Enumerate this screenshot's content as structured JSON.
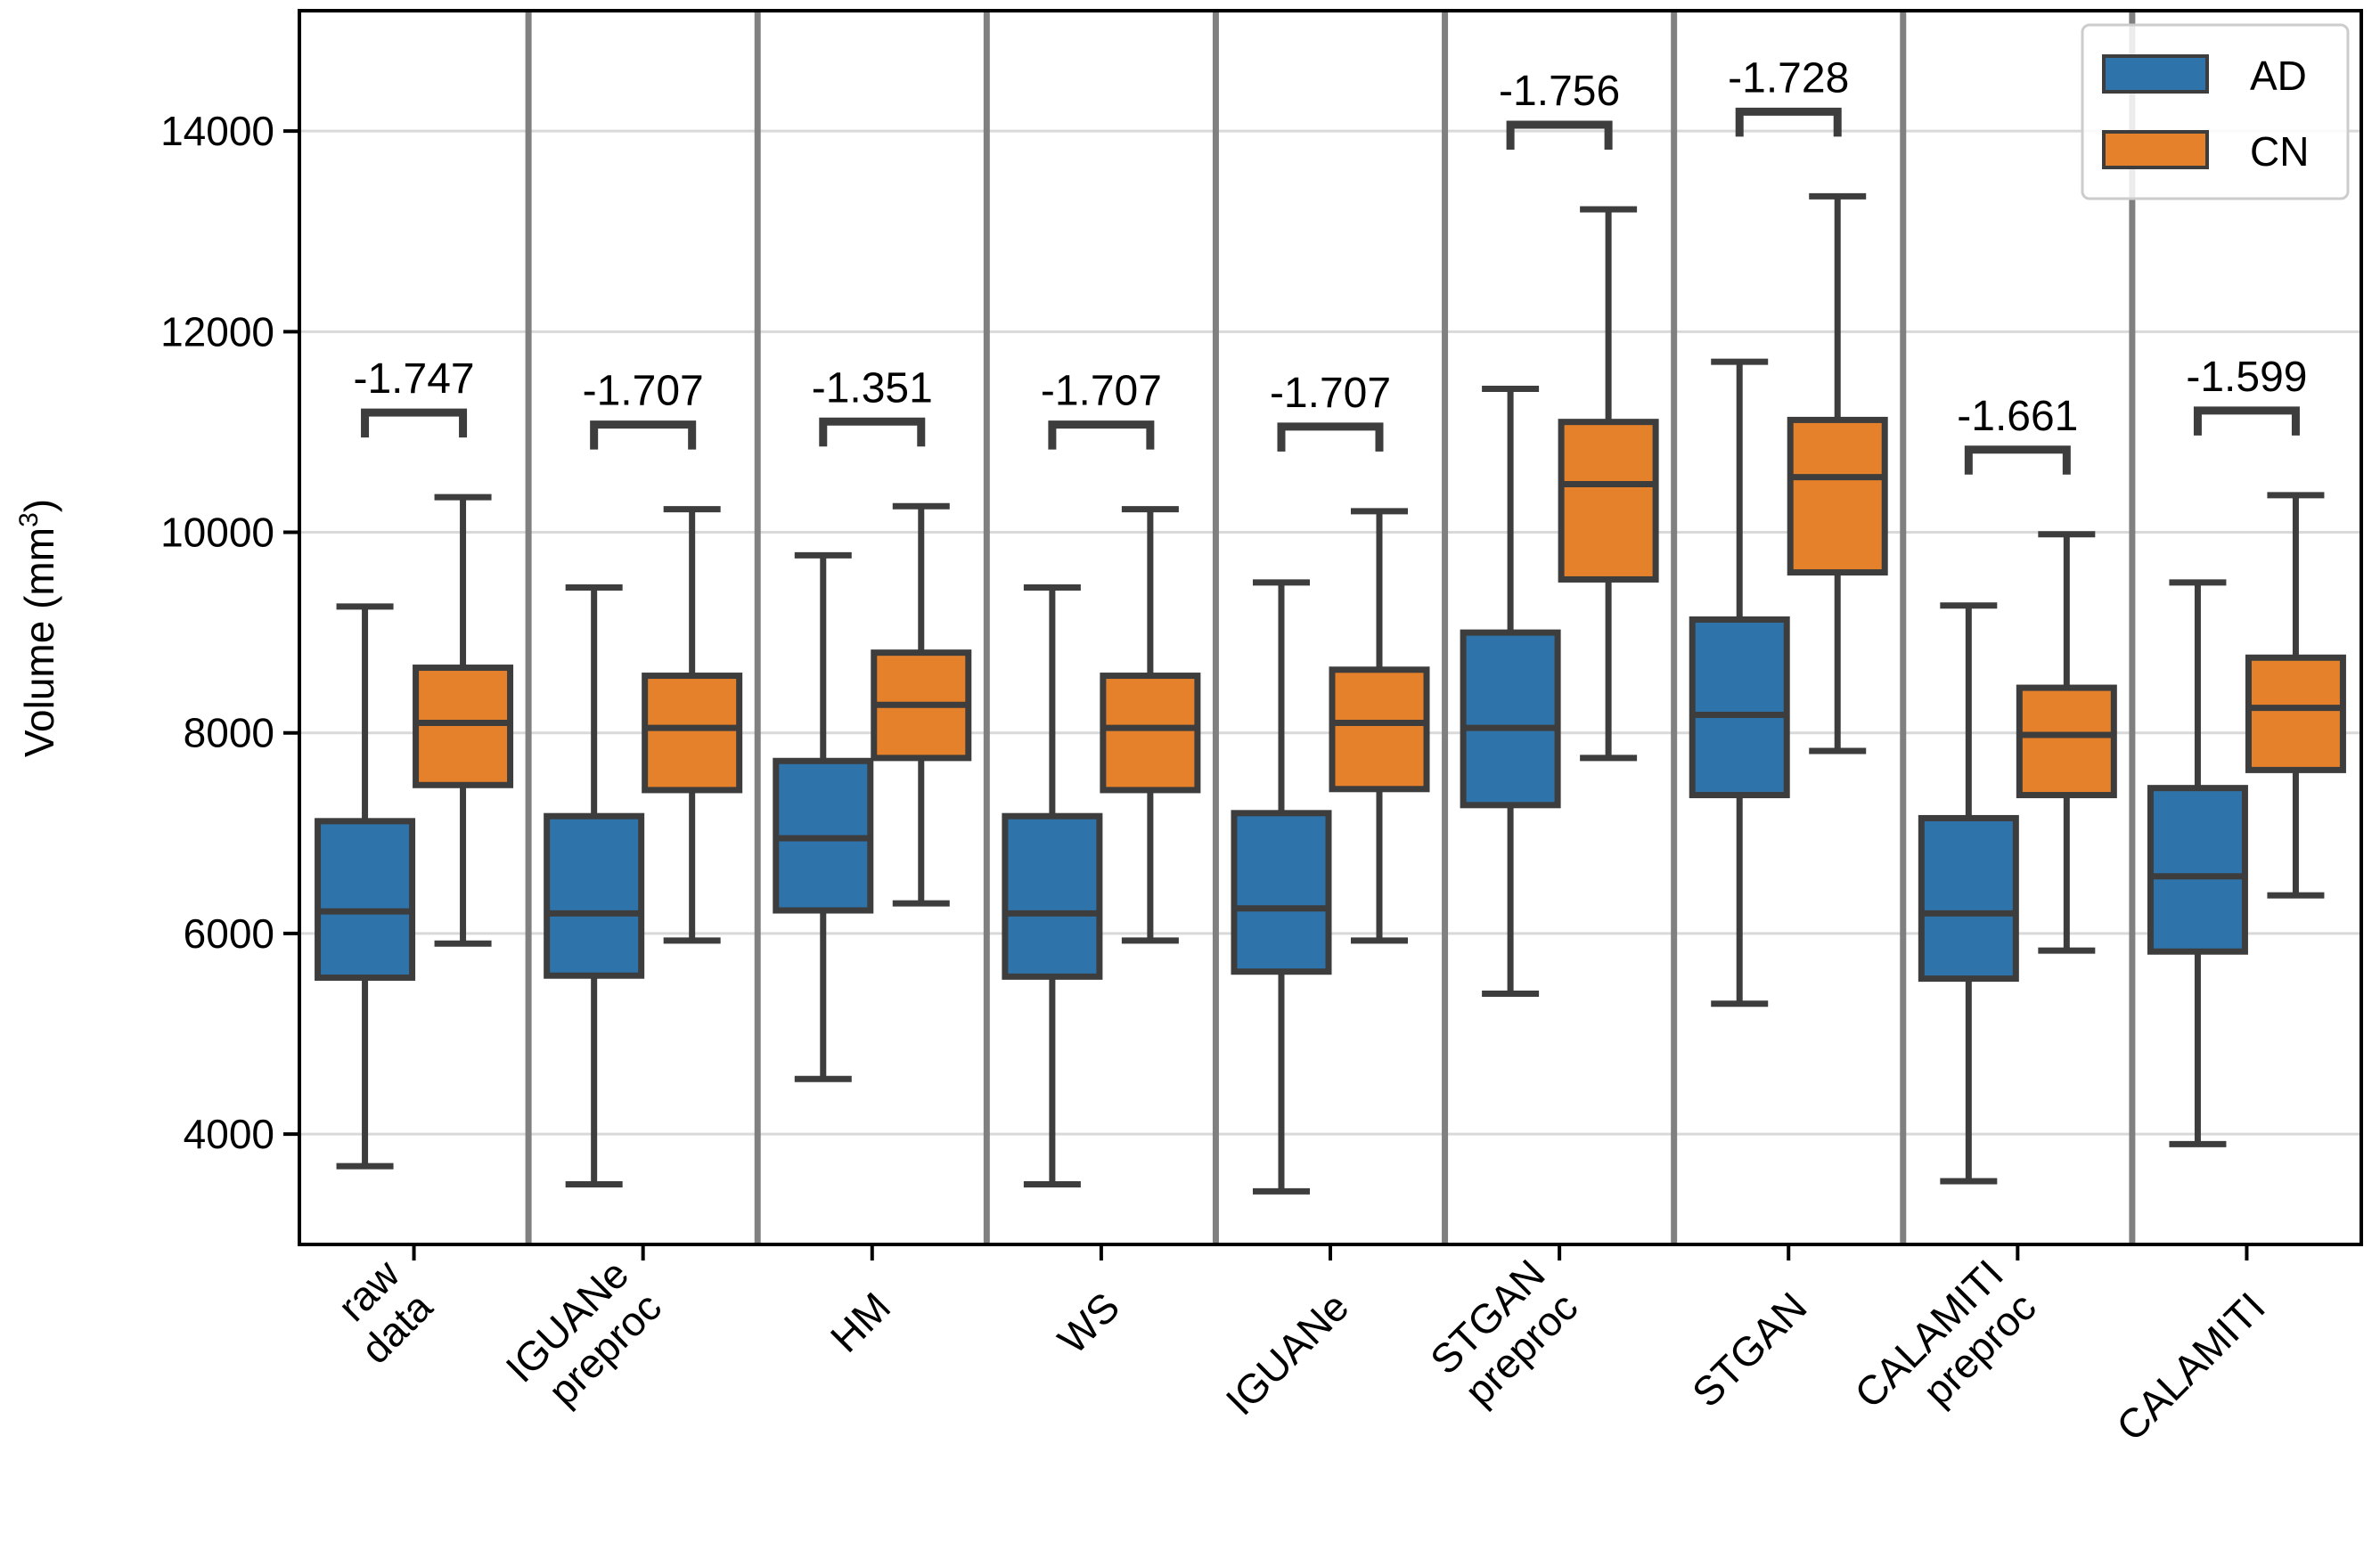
{
  "chart_data": {
    "type": "box",
    "title": "",
    "xlabel": "",
    "ylabel": "Volume (mm",
    "ylabel_superscript": "3",
    "ylabel_close": ")",
    "ylim": [
      2900,
      15200
    ],
    "yticks": [
      4000,
      6000,
      8000,
      10000,
      12000,
      14000
    ],
    "grid": "horizontal",
    "legend_position": "top-right",
    "series": [
      {
        "name": "AD",
        "color": "#2e74ab"
      },
      {
        "name": "CN",
        "color": "#e5812b"
      }
    ],
    "groups": [
      {
        "label": "raw data",
        "label_lines": [
          "raw",
          "data"
        ],
        "effect": "-1.747",
        "AD": {
          "whislo": 3680,
          "q1": 5560,
          "med": 6220,
          "q3": 7120,
          "whishi": 9260
        },
        "CN": {
          "whislo": 5900,
          "q1": 7480,
          "med": 8100,
          "q3": 8650,
          "whishi": 10350
        }
      },
      {
        "label": "IGUANe preproc",
        "label_lines": [
          "IGUANe",
          "preproc"
        ],
        "effect": "-1.707",
        "AD": {
          "whislo": 3500,
          "q1": 5580,
          "med": 6200,
          "q3": 7170,
          "whishi": 9450
        },
        "CN": {
          "whislo": 5930,
          "q1": 7430,
          "med": 8050,
          "q3": 8570,
          "whishi": 10230
        }
      },
      {
        "label": "HM",
        "label_lines": [
          "HM"
        ],
        "effect": "-1.351",
        "AD": {
          "whislo": 4550,
          "q1": 6230,
          "med": 6950,
          "q3": 7720,
          "whishi": 9770
        },
        "CN": {
          "whislo": 6300,
          "q1": 7750,
          "med": 8280,
          "q3": 8800,
          "whishi": 10260
        }
      },
      {
        "label": "WS",
        "label_lines": [
          "WS"
        ],
        "effect": "-1.707",
        "AD": {
          "whislo": 3500,
          "q1": 5570,
          "med": 6200,
          "q3": 7170,
          "whishi": 9450
        },
        "CN": {
          "whislo": 5930,
          "q1": 7430,
          "med": 8050,
          "q3": 8570,
          "whishi": 10230
        }
      },
      {
        "label": "IGUANe",
        "label_lines": [
          "IGUANe"
        ],
        "effect": "-1.707",
        "AD": {
          "whislo": 3430,
          "q1": 5620,
          "med": 6250,
          "q3": 7200,
          "whishi": 9500
        },
        "CN": {
          "whislo": 5930,
          "q1": 7440,
          "med": 8100,
          "q3": 8630,
          "whishi": 10210
        }
      },
      {
        "label": "STGAN preproc",
        "label_lines": [
          "STGAN",
          "preproc"
        ],
        "effect": "-1.756",
        "AD": {
          "whislo": 5400,
          "q1": 7280,
          "med": 8050,
          "q3": 9000,
          "whishi": 11430
        },
        "CN": {
          "whislo": 7750,
          "q1": 9530,
          "med": 10480,
          "q3": 11100,
          "whishi": 13220
        }
      },
      {
        "label": "STGAN",
        "label_lines": [
          "STGAN"
        ],
        "effect": "-1.728",
        "AD": {
          "whislo": 5300,
          "q1": 7380,
          "med": 8180,
          "q3": 9130,
          "whishi": 11700
        },
        "CN": {
          "whislo": 7820,
          "q1": 9600,
          "med": 10550,
          "q3": 11120,
          "whishi": 13350
        }
      },
      {
        "label": "CALAMITI preproc",
        "label_lines": [
          "CALAMITI",
          "preproc"
        ],
        "effect": "-1.661",
        "AD": {
          "whislo": 3530,
          "q1": 5550,
          "med": 6200,
          "q3": 7150,
          "whishi": 9270
        },
        "CN": {
          "whislo": 5830,
          "q1": 7380,
          "med": 7980,
          "q3": 8450,
          "whishi": 9980
        }
      },
      {
        "label": "CALAMITI",
        "label_lines": [
          "CALAMITI"
        ],
        "effect": "-1.599",
        "AD": {
          "whislo": 3900,
          "q1": 5820,
          "med": 6570,
          "q3": 7450,
          "whishi": 9500
        },
        "CN": {
          "whislo": 6380,
          "q1": 7630,
          "med": 8250,
          "q3": 8750,
          "whishi": 10370
        }
      }
    ]
  }
}
